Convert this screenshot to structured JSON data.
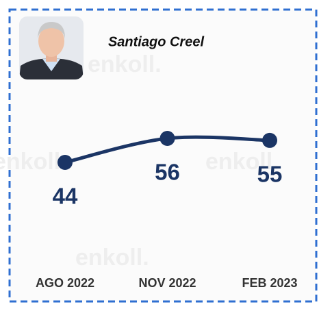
{
  "chart_data": {
    "type": "line",
    "title": "Santiago Creel",
    "watermark": "enkoll.",
    "categories": [
      "AGO 2022",
      "NOV 2022",
      "FEB 2023"
    ],
    "series": [
      {
        "color": "#1b3565",
        "values": [
          44,
          56,
          55
        ]
      }
    ]
  }
}
